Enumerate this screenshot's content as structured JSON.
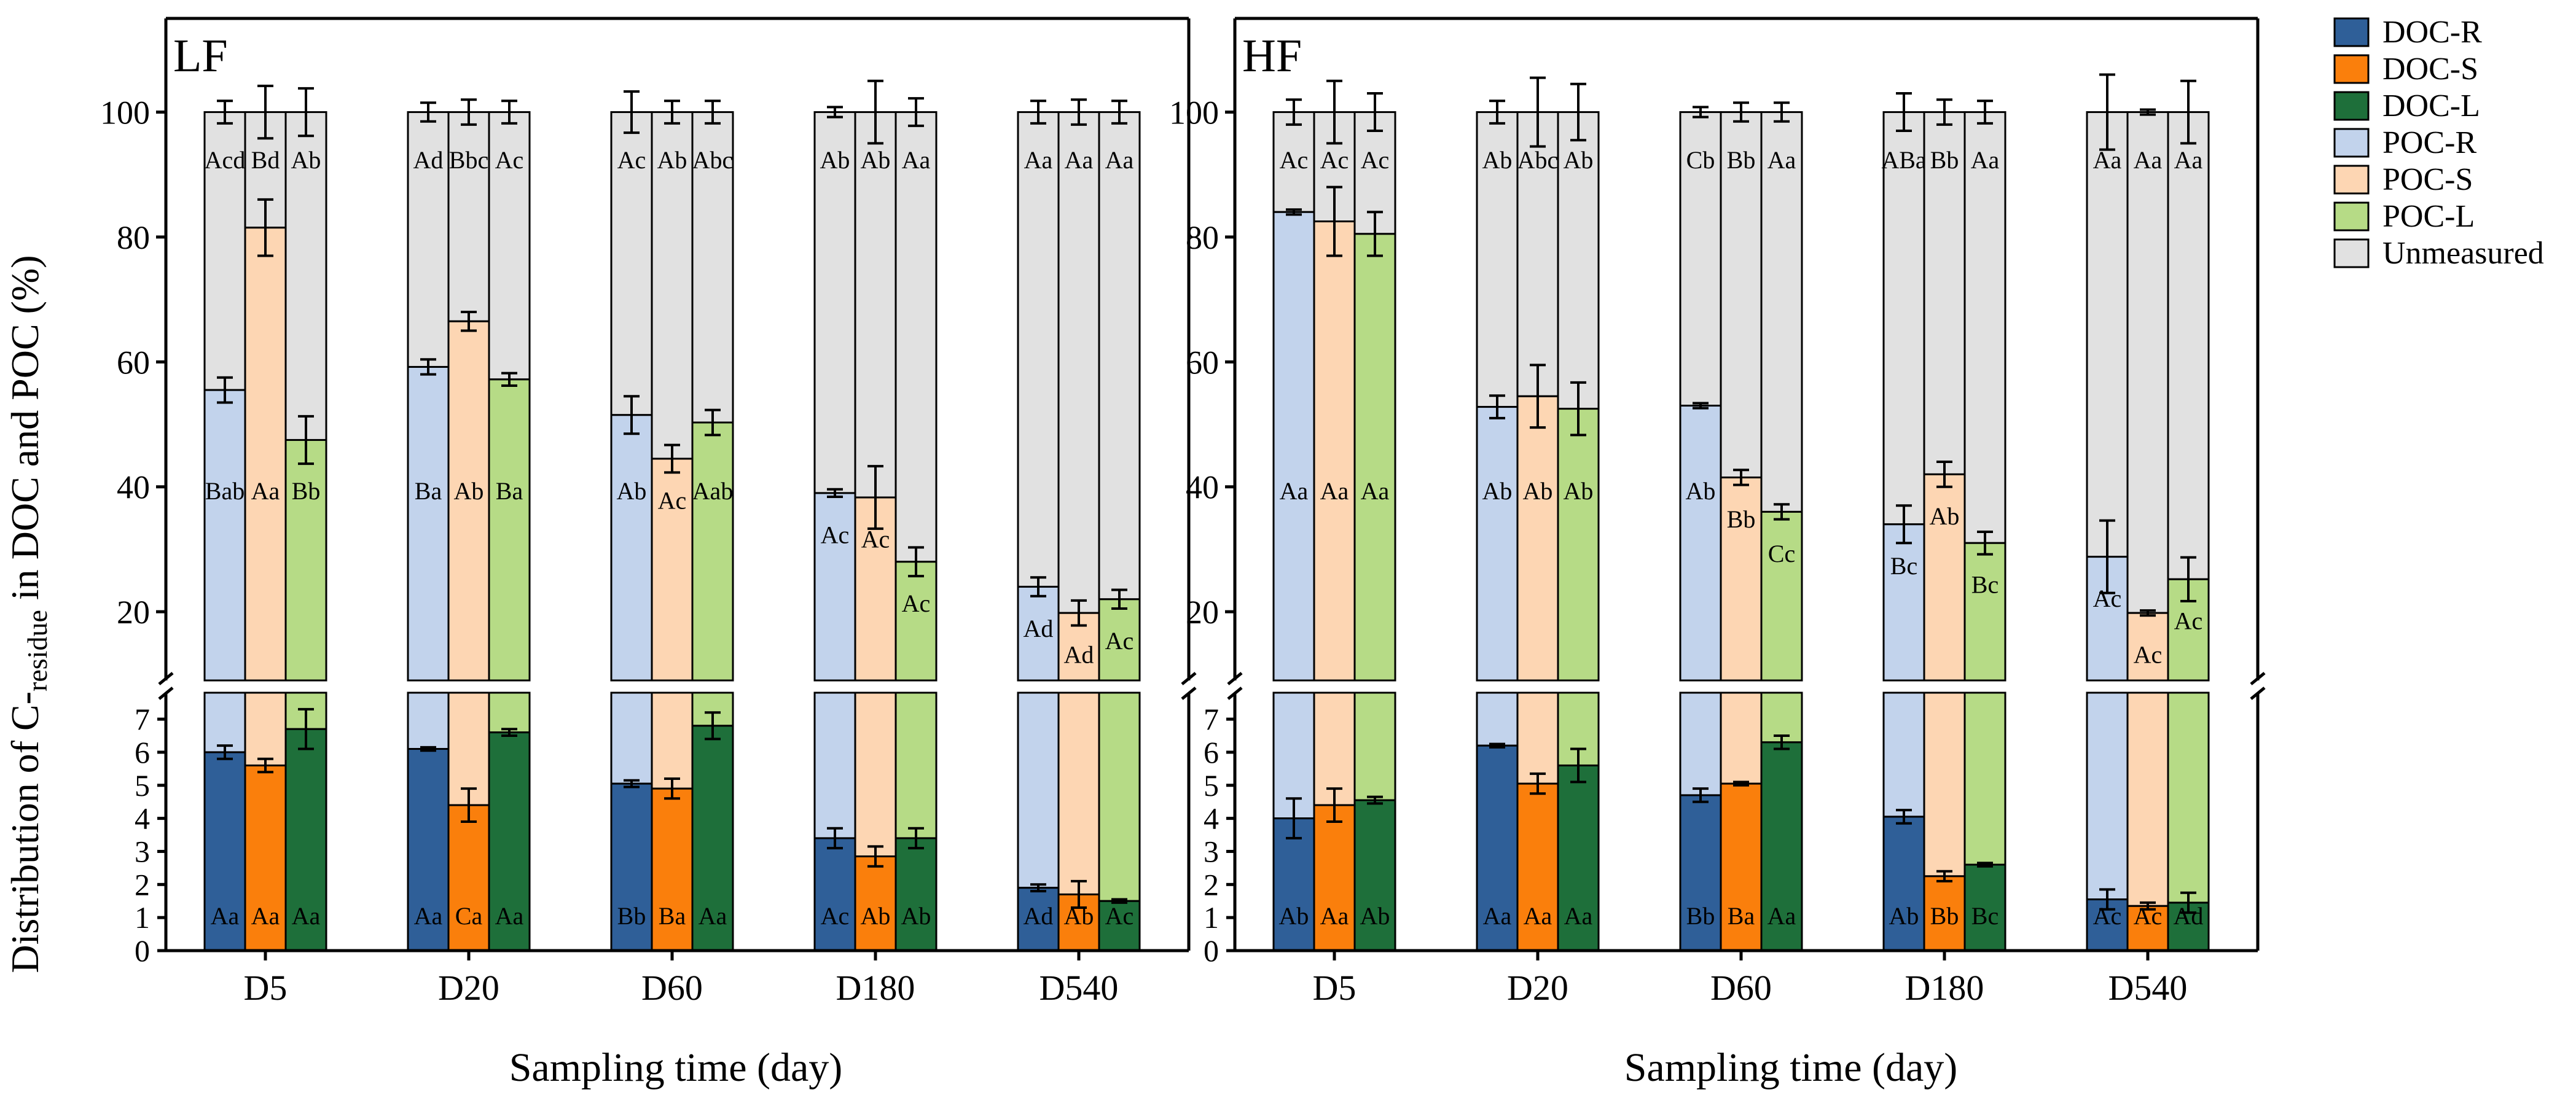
{
  "chart_data": {
    "type": "bar",
    "stacking": "stacked (DOC + POC + Unmeasured = 100%)",
    "ylabel_main": "Distribution of C-",
    "ylabel_sub": "residue",
    "ylabel_tail": " in DOC and POC (%)",
    "xlabel": "Sampling time (day)",
    "categories": [
      "D5",
      "D20",
      "D60",
      "D180",
      "D540"
    ],
    "treatments": [
      "R",
      "S",
      "L"
    ],
    "upper_ticks": [
      20,
      40,
      60,
      80,
      100
    ],
    "lower_ticks": [
      0,
      1,
      2,
      3,
      4,
      5,
      6,
      7
    ],
    "axis_break": {
      "lower_range": [
        0,
        7.8
      ],
      "upper_range": [
        9,
        115
      ]
    },
    "colors": {
      "DOC-R": "#2f5f98",
      "DOC-S": "#fa7f0c",
      "DOC-L": "#1e6f3a",
      "POC-R": "#c2d3ec",
      "POC-S": "#fdd6b3",
      "POC-L": "#b6db86",
      "Unmeasured": "#e1e1e1"
    },
    "legend": [
      "DOC-R",
      "DOC-S",
      "DOC-L",
      "POC-R",
      "POC-S",
      "POC-L",
      "Unmeasured"
    ],
    "panels": [
      {
        "label": "LF",
        "groups": [
          {
            "category": "D5",
            "bars": [
              {
                "treatment": "R",
                "doc": 6.0,
                "doc_err": 0.2,
                "doc_label": "Aa",
                "total": 55.5,
                "total_err": 2.0,
                "poc_label": "Bab",
                "top_err": 1.8,
                "top_label": "Acd"
              },
              {
                "treatment": "S",
                "doc": 5.6,
                "doc_err": 0.2,
                "doc_label": "Aa",
                "total": 81.5,
                "total_err": 4.5,
                "poc_label": "Aa",
                "top_err": 4.2,
                "top_label": "Bd"
              },
              {
                "treatment": "L",
                "doc": 6.7,
                "doc_err": 0.6,
                "doc_label": "Aa",
                "total": 47.5,
                "total_err": 3.8,
                "poc_label": "Bb",
                "top_err": 3.8,
                "top_label": "Ab"
              }
            ]
          },
          {
            "category": "D20",
            "bars": [
              {
                "treatment": "R",
                "doc": 6.1,
                "doc_err": 0.05,
                "doc_label": "Aa",
                "total": 59.2,
                "total_err": 1.2,
                "poc_label": "Ba",
                "top_err": 1.5,
                "top_label": "Ad"
              },
              {
                "treatment": "S",
                "doc": 4.4,
                "doc_err": 0.5,
                "doc_label": "Ca",
                "total": 66.5,
                "total_err": 1.5,
                "poc_label": "Ab",
                "top_err": 2.0,
                "top_label": "Bbc"
              },
              {
                "treatment": "L",
                "doc": 6.6,
                "doc_err": 0.1,
                "doc_label": "Aa",
                "total": 57.2,
                "total_err": 1.0,
                "poc_label": "Ba",
                "top_err": 1.8,
                "top_label": "Ac"
              }
            ]
          },
          {
            "category": "D60",
            "bars": [
              {
                "treatment": "R",
                "doc": 5.05,
                "doc_err": 0.1,
                "doc_label": "Bb",
                "total": 51.5,
                "total_err": 3.0,
                "poc_label": "Ab",
                "top_err": 3.3,
                "top_label": "Ac"
              },
              {
                "treatment": "S",
                "doc": 4.9,
                "doc_err": 0.3,
                "doc_label": "Ba",
                "total": 44.5,
                "total_err": 2.2,
                "poc_label": "Ac",
                "top_err": 1.8,
                "top_label": "Ab"
              },
              {
                "treatment": "L",
                "doc": 6.8,
                "doc_err": 0.4,
                "doc_label": "Aa",
                "total": 50.3,
                "total_err": 2.0,
                "poc_label": "Aab",
                "top_err": 1.8,
                "top_label": "Abc"
              }
            ]
          },
          {
            "category": "D180",
            "bars": [
              {
                "treatment": "R",
                "doc": 3.4,
                "doc_err": 0.3,
                "doc_label": "Ac",
                "total": 39.0,
                "total_err": 0.6,
                "poc_label": "Ac",
                "top_err": 0.8,
                "top_label": "Ab"
              },
              {
                "treatment": "S",
                "doc": 2.85,
                "doc_err": 0.3,
                "doc_label": "Ab",
                "total": 38.3,
                "total_err": 5.0,
                "poc_label": "Ac",
                "top_err": 5.0,
                "top_label": "Ab"
              },
              {
                "treatment": "L",
                "doc": 3.4,
                "doc_err": 0.3,
                "doc_label": "Ab",
                "total": 28.0,
                "total_err": 2.3,
                "poc_label": "Ac",
                "top_err": 2.2,
                "top_label": "Aa"
              }
            ]
          },
          {
            "category": "D540",
            "bars": [
              {
                "treatment": "R",
                "doc": 1.9,
                "doc_err": 0.1,
                "doc_label": "Ad",
                "total": 24.0,
                "total_err": 1.5,
                "poc_label": "Ad",
                "top_err": 1.8,
                "top_label": "Aa"
              },
              {
                "treatment": "S",
                "doc": 1.7,
                "doc_err": 0.4,
                "doc_label": "Ab",
                "total": 19.8,
                "total_err": 2.0,
                "poc_label": "Ad",
                "top_err": 2.0,
                "top_label": "Aa"
              },
              {
                "treatment": "L",
                "doc": 1.5,
                "doc_err": 0.05,
                "doc_label": "Ac",
                "total": 22.0,
                "total_err": 1.5,
                "poc_label": "Ac",
                "top_err": 1.8,
                "top_label": "Aa"
              }
            ]
          }
        ]
      },
      {
        "label": "HF",
        "groups": [
          {
            "category": "D5",
            "bars": [
              {
                "treatment": "R",
                "doc": 4.0,
                "doc_err": 0.6,
                "doc_label": "Ab",
                "total": 84.0,
                "total_err": 0.4,
                "poc_label": "Aa",
                "top_err": 2.0,
                "top_label": "Ac"
              },
              {
                "treatment": "S",
                "doc": 4.4,
                "doc_err": 0.5,
                "doc_label": "Aa",
                "total": 82.5,
                "total_err": 5.5,
                "poc_label": "Aa",
                "top_err": 5.0,
                "top_label": "Ac"
              },
              {
                "treatment": "L",
                "doc": 4.55,
                "doc_err": 0.1,
                "doc_label": "Ab",
                "total": 80.5,
                "total_err": 3.5,
                "poc_label": "Aa",
                "top_err": 3.0,
                "top_label": "Ac"
              }
            ]
          },
          {
            "category": "D20",
            "bars": [
              {
                "treatment": "R",
                "doc": 6.2,
                "doc_err": 0.05,
                "doc_label": "Aa",
                "total": 52.8,
                "total_err": 1.8,
                "poc_label": "Ab",
                "top_err": 1.8,
                "top_label": "Ab"
              },
              {
                "treatment": "S",
                "doc": 5.05,
                "doc_err": 0.3,
                "doc_label": "Aa",
                "total": 54.5,
                "total_err": 5.0,
                "poc_label": "Ab",
                "top_err": 5.5,
                "top_label": "Abc"
              },
              {
                "treatment": "L",
                "doc": 5.6,
                "doc_err": 0.5,
                "doc_label": "Aa",
                "total": 52.5,
                "total_err": 4.2,
                "poc_label": "Ab",
                "top_err": 4.5,
                "top_label": "Ab"
              }
            ]
          },
          {
            "category": "D60",
            "bars": [
              {
                "treatment": "R",
                "doc": 4.7,
                "doc_err": 0.2,
                "doc_label": "Bb",
                "total": 53.0,
                "total_err": 0.4,
                "poc_label": "Ab",
                "top_err": 0.8,
                "top_label": "Cb"
              },
              {
                "treatment": "S",
                "doc": 5.05,
                "doc_err": 0.05,
                "doc_label": "Ba",
                "total": 41.5,
                "total_err": 1.2,
                "poc_label": "Bb",
                "top_err": 1.5,
                "top_label": "Bb"
              },
              {
                "treatment": "L",
                "doc": 6.3,
                "doc_err": 0.2,
                "doc_label": "Aa",
                "total": 36.0,
                "total_err": 1.2,
                "poc_label": "Cc",
                "top_err": 1.5,
                "top_label": "Aa"
              }
            ]
          },
          {
            "category": "D180",
            "bars": [
              {
                "treatment": "R",
                "doc": 4.05,
                "doc_err": 0.2,
                "doc_label": "Ab",
                "total": 34.0,
                "total_err": 3.0,
                "poc_label": "Bc",
                "top_err": 3.0,
                "top_label": "ABa"
              },
              {
                "treatment": "S",
                "doc": 2.25,
                "doc_err": 0.15,
                "doc_label": "Bb",
                "total": 42.0,
                "total_err": 2.0,
                "poc_label": "Ab",
                "top_err": 2.0,
                "top_label": "Bb"
              },
              {
                "treatment": "L",
                "doc": 2.6,
                "doc_err": 0.05,
                "doc_label": "Bc",
                "total": 31.0,
                "total_err": 1.8,
                "poc_label": "Bc",
                "top_err": 1.8,
                "top_label": "Aa"
              }
            ]
          },
          {
            "category": "D540",
            "bars": [
              {
                "treatment": "R",
                "doc": 1.55,
                "doc_err": 0.3,
                "doc_label": "Ac",
                "total": 28.8,
                "total_err": 5.8,
                "poc_label": "Ac",
                "top_err": 6.0,
                "top_label": "Aa"
              },
              {
                "treatment": "S",
                "doc": 1.35,
                "doc_err": 0.1,
                "doc_label": "Ac",
                "total": 19.8,
                "total_err": 0.4,
                "poc_label": "Ac",
                "top_err": 0.4,
                "top_label": "Aa"
              },
              {
                "treatment": "L",
                "doc": 1.45,
                "doc_err": 0.3,
                "doc_label": "Ad",
                "total": 25.2,
                "total_err": 3.5,
                "poc_label": "Ac",
                "top_err": 5.0,
                "top_label": "Aa"
              }
            ]
          }
        ]
      }
    ]
  }
}
